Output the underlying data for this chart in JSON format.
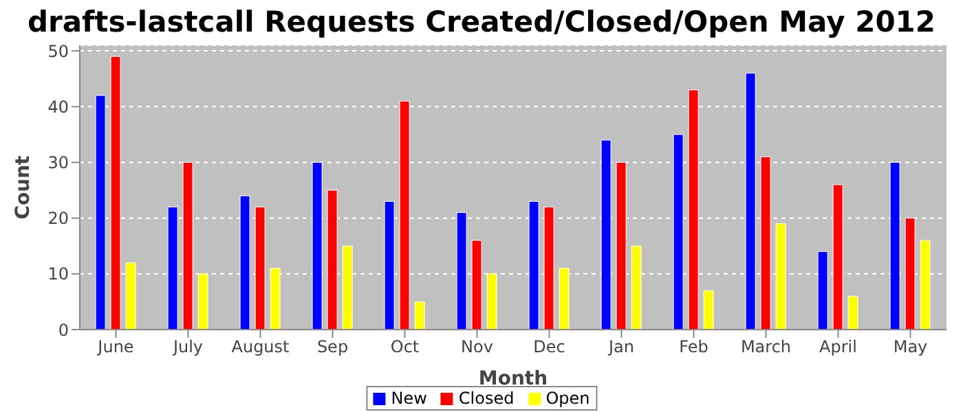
{
  "chart_data": {
    "type": "bar",
    "title": "drafts-lastcall Requests Created/Closed/Open May 2012",
    "xlabel": "Month",
    "ylabel": "Count",
    "categories": [
      "June",
      "July",
      "August",
      "Sep",
      "Oct",
      "Nov",
      "Dec",
      "Jan",
      "Feb",
      "March",
      "April",
      "May"
    ],
    "series": [
      {
        "name": "New",
        "color": "#0000ff",
        "values": [
          42,
          22,
          24,
          30,
          23,
          21,
          23,
          34,
          35,
          46,
          14,
          30
        ]
      },
      {
        "name": "Closed",
        "color": "#ff0000",
        "values": [
          49,
          30,
          22,
          25,
          41,
          16,
          22,
          30,
          43,
          31,
          26,
          20
        ]
      },
      {
        "name": "Open",
        "color": "#ffff00",
        "values": [
          12,
          10,
          11,
          15,
          5,
          10,
          11,
          15,
          7,
          19,
          6,
          16
        ]
      }
    ],
    "ylim": [
      0,
      51
    ],
    "yticks": [
      0,
      10,
      20,
      30,
      40,
      50
    ],
    "grid": "y",
    "legend": "bottom"
  }
}
